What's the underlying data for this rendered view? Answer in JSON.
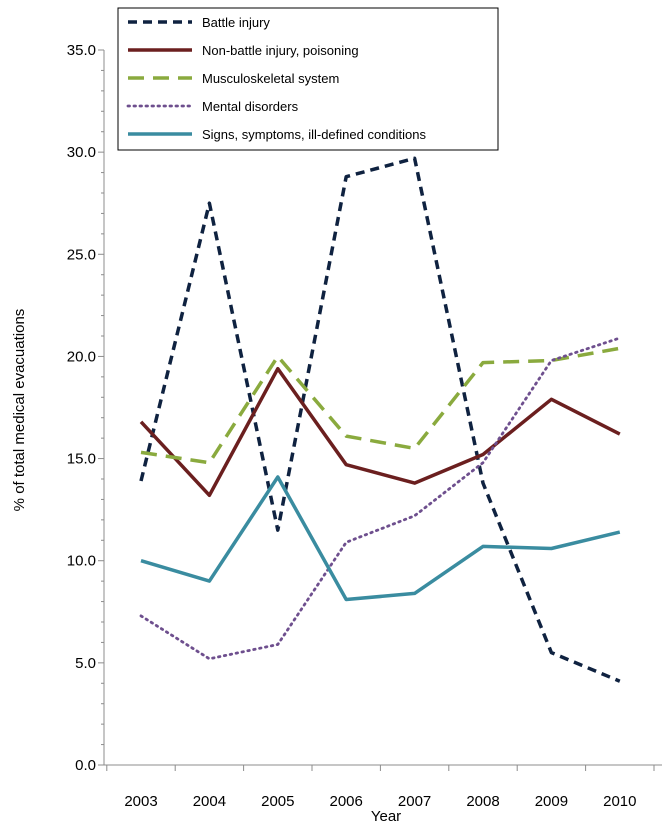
{
  "chart_data": {
    "type": "line",
    "title": "",
    "xlabel": "Year",
    "ylabel": "% of total medical evacuations",
    "categories": [
      "2003",
      "2004",
      "2005",
      "2006",
      "2007",
      "2008",
      "2009",
      "2010"
    ],
    "ylim": [
      0,
      35
    ],
    "yticks": [
      "0.0",
      "5.0",
      "10.0",
      "15.0",
      "20.0",
      "25.0",
      "30.0",
      "35.0"
    ],
    "grid": false,
    "legend_position": "top",
    "series": [
      {
        "name": "Battle injury",
        "color": "#0f2240",
        "dash": "dashed",
        "values": [
          13.9,
          27.5,
          11.5,
          28.8,
          29.7,
          13.8,
          5.5,
          4.1
        ]
      },
      {
        "name": "Non-battle injury, poisoning",
        "color": "#6b1f1f",
        "dash": "solid",
        "values": [
          16.8,
          13.2,
          19.4,
          14.7,
          13.8,
          15.2,
          17.9,
          16.2
        ]
      },
      {
        "name": "Musculoskeletal system",
        "color": "#8aaa3e",
        "dash": "longdash",
        "values": [
          15.3,
          14.8,
          20.0,
          16.1,
          15.5,
          19.7,
          19.8,
          20.4
        ]
      },
      {
        "name": "Mental disorders",
        "color": "#6e4f8e",
        "dash": "dotted",
        "values": [
          7.3,
          5.2,
          5.9,
          10.9,
          12.2,
          14.8,
          19.8,
          20.9
        ]
      },
      {
        "name": "Signs, symptoms, ill-defined conditions",
        "color": "#3a8ca0",
        "dash": "solid",
        "values": [
          10.0,
          9.0,
          14.1,
          8.1,
          8.4,
          10.7,
          10.6,
          11.4
        ]
      }
    ]
  }
}
